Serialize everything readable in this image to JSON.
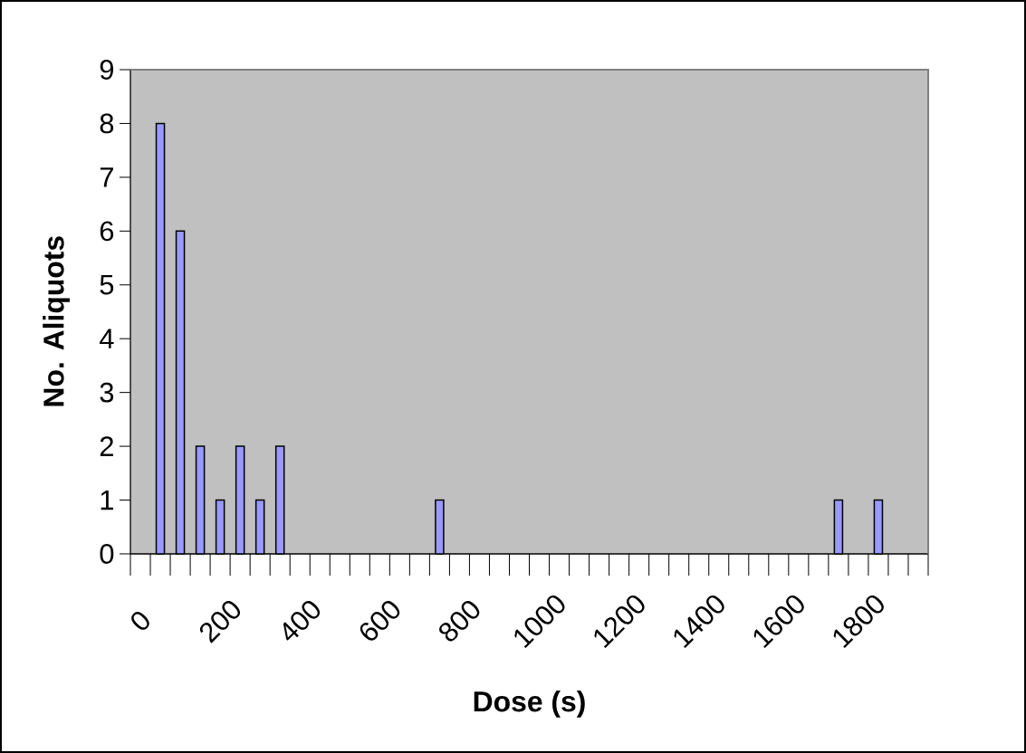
{
  "chart_data": {
    "type": "bar",
    "xlabel": "Dose (s)",
    "ylabel": "No. Aliquots",
    "categories": [
      "0",
      null,
      null,
      null,
      "200",
      null,
      null,
      null,
      "400",
      null,
      null,
      null,
      "600",
      null,
      null,
      null,
      "800",
      null,
      null,
      null,
      "1000",
      null,
      null,
      null,
      "1200",
      null,
      null,
      null,
      "1400",
      null,
      null,
      null,
      "1600",
      null,
      null,
      null,
      "1800",
      null,
      null,
      null
    ],
    "values": [
      null,
      8,
      6,
      2,
      1,
      2,
      1,
      2,
      null,
      null,
      null,
      null,
      null,
      null,
      null,
      1,
      null,
      null,
      null,
      null,
      null,
      null,
      null,
      null,
      null,
      null,
      null,
      null,
      null,
      null,
      null,
      null,
      null,
      null,
      null,
      1,
      null,
      1,
      null,
      null
    ],
    "color": "#9999ff",
    "ylim": [
      0,
      9
    ],
    "yticks": [
      0,
      1,
      2,
      3,
      4,
      5,
      6,
      7,
      8,
      9
    ]
  }
}
